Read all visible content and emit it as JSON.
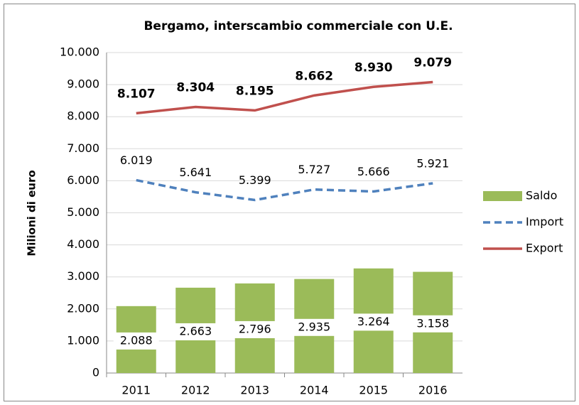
{
  "chart_data": {
    "type": "bar",
    "title": "Bergamo, interscambio commerciale con U.E.",
    "y_label": "Milioni di euro",
    "categories": [
      "2011",
      "2012",
      "2013",
      "2014",
      "2015",
      "2016"
    ],
    "series": [
      {
        "name": "Saldo",
        "type": "bar",
        "color": "#9bbb59",
        "values": [
          2088,
          2663,
          2796,
          2935,
          3264,
          3158
        ],
        "value_labels": [
          "2.088",
          "2.663",
          "2.796",
          "2.935",
          "3.264",
          "3.158"
        ]
      },
      {
        "name": "Import",
        "type": "line",
        "dashed": true,
        "color": "#4f81bd",
        "values": [
          6019,
          5641,
          5399,
          5727,
          5666,
          5921
        ],
        "value_labels": [
          "6.019",
          "5.641",
          "5.399",
          "5.727",
          "5.666",
          "5.921"
        ]
      },
      {
        "name": "Export",
        "type": "line",
        "bold_labels": true,
        "color": "#c0504d",
        "values": [
          8107,
          8304,
          8195,
          8662,
          8930,
          9079
        ],
        "value_labels": [
          "8.107",
          "8.304",
          "8.195",
          "8.662",
          "8.930",
          "9.079"
        ]
      }
    ],
    "ylim": [
      0,
      10000
    ],
    "yticks": [
      0,
      {
        "value": 1000,
        "label": "1.000"
      },
      {
        "value": 2000,
        "label": "2.000"
      },
      {
        "value": 3000,
        "label": "3.000"
      },
      {
        "value": 4000,
        "label": "4.000"
      },
      {
        "value": 5000,
        "label": "5.000"
      },
      {
        "value": 6000,
        "label": "6.000"
      },
      {
        "value": 7000,
        "label": "7.000"
      },
      {
        "value": 8000,
        "label": "8.000"
      },
      {
        "value": 9000,
        "label": "9.000"
      },
      {
        "value": 10000,
        "label": "10.000"
      }
    ],
    "grid": true,
    "legend": "right"
  }
}
